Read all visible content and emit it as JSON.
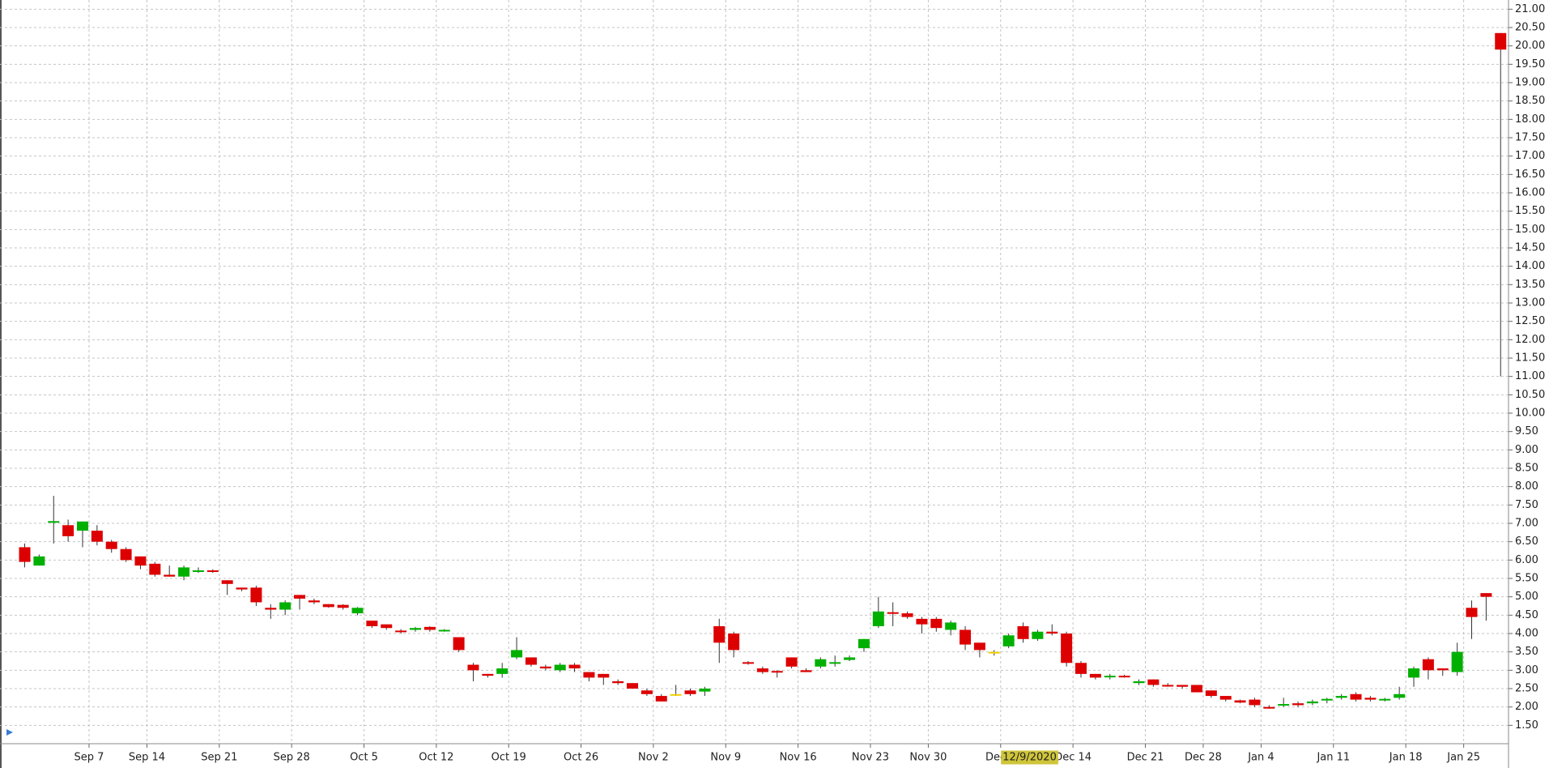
{
  "chart_data": {
    "type": "candlestick",
    "categories": [
      null,
      null,
      null,
      null,
      "Sep 7",
      null,
      null,
      null,
      "Sep 14",
      null,
      null,
      null,
      null,
      "Sep 21",
      null,
      null,
      null,
      null,
      "Sep 28",
      null,
      null,
      null,
      null,
      "Oct 5",
      null,
      null,
      null,
      null,
      "Oct 12",
      null,
      null,
      null,
      null,
      "Oct 19",
      null,
      null,
      null,
      null,
      "Oct 26",
      null,
      null,
      null,
      null,
      "Nov 2",
      null,
      null,
      null,
      null,
      "Nov 9",
      null,
      null,
      null,
      null,
      "Nov 16",
      null,
      null,
      null,
      null,
      "Nov 23",
      null,
      null,
      null,
      "Nov 30",
      null,
      null,
      null,
      null,
      "Dec 7",
      null,
      null,
      null,
      null,
      "Dec 14",
      null,
      null,
      null,
      null,
      "Dec 21",
      null,
      null,
      null,
      "Dec 28",
      null,
      null,
      null,
      "Jan 4",
      null,
      null,
      null,
      null,
      "Jan 11",
      null,
      null,
      null,
      null,
      "Jan 18",
      null,
      null,
      null,
      "Jan 25",
      null,
      null,
      null
    ],
    "open": [
      6.35,
      5.85,
      7.03,
      6.95,
      6.8,
      6.8,
      6.5,
      6.3,
      6.1,
      5.9,
      5.6,
      5.55,
      5.7,
      5.72,
      5.45,
      5.25,
      5.25,
      4.7,
      4.65,
      5.05,
      4.9,
      4.8,
      4.78,
      4.55,
      4.35,
      4.25,
      4.08,
      4.1,
      4.18,
      4.08,
      3.9,
      3.15,
      2.9,
      2.9,
      3.35,
      3.35,
      3.1,
      3.0,
      3.15,
      2.95,
      2.9,
      2.7,
      2.65,
      2.45,
      2.3,
      2.35,
      2.45,
      2.42,
      4.2,
      4.0,
      3.22,
      3.05,
      2.98,
      3.35,
      3.0,
      3.1,
      3.2,
      3.28,
      3.6,
      4.2,
      4.58,
      4.55,
      4.4,
      4.4,
      4.1,
      4.1,
      3.75,
      3.5,
      3.65,
      4.2,
      3.85,
      4.05,
      4.0,
      3.2,
      2.9,
      2.82,
      2.85,
      2.65,
      2.75,
      2.6,
      2.6,
      2.6,
      2.45,
      2.3,
      2.18,
      2.2,
      2.0,
      2.05,
      2.1,
      2.1,
      2.18,
      2.25,
      2.35,
      2.25,
      2.2,
      2.25,
      2.8,
      3.3,
      3.05,
      2.95,
      4.7,
      5.1,
      20.35
    ],
    "high": [
      6.45,
      6.15,
      7.75,
      7.1,
      7.05,
      6.95,
      6.55,
      6.35,
      6.1,
      5.95,
      5.85,
      5.85,
      5.8,
      5.75,
      5.45,
      5.25,
      5.3,
      4.8,
      4.9,
      5.05,
      4.95,
      4.8,
      4.8,
      4.72,
      4.35,
      4.25,
      4.12,
      4.18,
      4.2,
      4.12,
      3.9,
      3.2,
      2.9,
      3.2,
      3.9,
      3.35,
      3.15,
      3.2,
      3.2,
      2.95,
      2.9,
      2.75,
      2.65,
      2.5,
      2.35,
      2.6,
      2.5,
      2.55,
      4.4,
      4.05,
      3.25,
      3.1,
      3.0,
      3.35,
      3.05,
      3.35,
      3.4,
      3.4,
      3.85,
      5.0,
      4.85,
      4.6,
      4.45,
      4.45,
      4.35,
      4.2,
      3.75,
      3.55,
      4.0,
      4.3,
      4.1,
      4.25,
      4.05,
      3.25,
      2.9,
      2.9,
      2.88,
      2.75,
      2.75,
      2.65,
      2.6,
      2.6,
      2.45,
      2.3,
      2.2,
      2.25,
      2.05,
      2.25,
      2.15,
      2.2,
      2.25,
      2.35,
      2.4,
      2.3,
      2.25,
      2.55,
      3.1,
      3.35,
      3.05,
      3.75,
      4.9,
      5.1,
      20.35
    ],
    "low": [
      5.8,
      5.85,
      6.45,
      6.5,
      6.35,
      6.4,
      6.2,
      5.95,
      5.75,
      5.55,
      5.55,
      5.45,
      5.65,
      5.65,
      5.05,
      5.15,
      4.75,
      4.4,
      4.5,
      4.65,
      4.8,
      4.7,
      4.65,
      4.5,
      4.15,
      4.1,
      4.0,
      4.05,
      4.05,
      4.05,
      3.5,
      2.7,
      2.8,
      2.8,
      3.3,
      3.1,
      3.0,
      2.95,
      2.95,
      2.7,
      2.6,
      2.6,
      2.5,
      2.3,
      2.15,
      2.3,
      2.3,
      2.3,
      3.2,
      3.35,
      3.15,
      2.9,
      2.8,
      3.05,
      2.95,
      3.05,
      3.1,
      3.25,
      3.5,
      4.15,
      4.2,
      4.4,
      4.0,
      4.05,
      3.95,
      3.55,
      3.35,
      3.4,
      3.6,
      3.75,
      3.8,
      3.95,
      3.1,
      2.8,
      2.75,
      2.75,
      2.8,
      2.6,
      2.55,
      2.55,
      2.5,
      2.4,
      2.25,
      2.15,
      2.1,
      2.0,
      1.95,
      2.0,
      2.0,
      2.05,
      2.1,
      2.2,
      2.15,
      2.15,
      2.15,
      2.2,
      2.55,
      2.75,
      2.85,
      2.85,
      3.85,
      4.35,
      11.0
    ],
    "close": [
      5.95,
      6.1,
      7.06,
      6.65,
      7.05,
      6.5,
      6.3,
      6.0,
      5.85,
      5.6,
      5.55,
      5.8,
      5.72,
      5.7,
      5.35,
      5.2,
      4.85,
      4.65,
      4.85,
      4.95,
      4.85,
      4.72,
      4.7,
      4.7,
      4.2,
      4.15,
      4.05,
      4.15,
      4.1,
      4.1,
      3.55,
      3.0,
      2.85,
      3.05,
      3.55,
      3.15,
      3.05,
      3.15,
      3.05,
      2.8,
      2.8,
      2.65,
      2.5,
      2.35,
      2.15,
      2.35,
      2.35,
      2.5,
      3.75,
      3.55,
      3.18,
      2.95,
      2.95,
      3.1,
      2.95,
      3.3,
      3.22,
      3.35,
      3.85,
      4.6,
      4.55,
      4.45,
      4.25,
      4.15,
      4.3,
      3.7,
      3.55,
      3.5,
      3.95,
      3.85,
      4.05,
      4.0,
      3.2,
      2.9,
      2.8,
      2.85,
      2.82,
      2.7,
      2.6,
      2.58,
      2.55,
      2.4,
      2.3,
      2.2,
      2.12,
      2.05,
      1.98,
      2.08,
      2.05,
      2.15,
      2.22,
      2.3,
      2.2,
      2.2,
      2.22,
      2.35,
      3.05,
      3.0,
      3.0,
      3.5,
      4.45,
      5.0,
      19.9
    ],
    "up_color": "#00b000",
    "down_color": "#dd0000",
    "flat_color": "#f0d000",
    "ylim": [
      1.0,
      21.25
    ],
    "yticks": [
      {
        "value": 1.5,
        "label": "1.50"
      },
      {
        "value": 2,
        "label": "2.00"
      },
      {
        "value": 2.5,
        "label": "2.50"
      },
      {
        "value": 3,
        "label": "3.00"
      },
      {
        "value": 3.5,
        "label": "3.50"
      },
      {
        "value": 4,
        "label": "4.00"
      },
      {
        "value": 4.5,
        "label": "4.50"
      },
      {
        "value": 5,
        "label": "5.00"
      },
      {
        "value": 5.5,
        "label": "5.50"
      },
      {
        "value": 6,
        "label": "6.00"
      },
      {
        "value": 6.5,
        "label": "6.50"
      },
      {
        "value": 7,
        "label": "7.00"
      },
      {
        "value": 7.5,
        "label": "7.50"
      },
      {
        "value": 8,
        "label": "8.00"
      },
      {
        "value": 8.5,
        "label": "8.50"
      },
      {
        "value": 9,
        "label": "9.00"
      },
      {
        "value": 9.5,
        "label": "9.50"
      },
      {
        "value": 10,
        "label": "10.00"
      },
      {
        "value": 10.5,
        "label": "10.50"
      },
      {
        "value": 11,
        "label": "11.00"
      },
      {
        "value": 11.5,
        "label": "11.50"
      },
      {
        "value": 12,
        "label": "12.00"
      },
      {
        "value": 12.5,
        "label": "12.50"
      },
      {
        "value": 13,
        "label": "13.00"
      },
      {
        "value": 13.5,
        "label": "13.50"
      },
      {
        "value": 14,
        "label": "14.00"
      },
      {
        "value": 14.5,
        "label": "14.50"
      },
      {
        "value": 15,
        "label": "15.00"
      },
      {
        "value": 15.5,
        "label": "15.50"
      },
      {
        "value": 16,
        "label": "16.00"
      },
      {
        "value": 16.5,
        "label": "16.50"
      },
      {
        "value": 17,
        "label": "17.00"
      },
      {
        "value": 17.5,
        "label": "17.50"
      },
      {
        "value": 18,
        "label": "18.00"
      },
      {
        "value": 18.5,
        "label": "18.50"
      },
      {
        "value": 19,
        "label": "19.00"
      },
      {
        "value": 19.5,
        "label": "19.50"
      },
      {
        "value": 20,
        "label": "20.00"
      },
      {
        "value": 20.5,
        "label": "20.50"
      },
      {
        "value": 21,
        "label": "21.00"
      }
    ],
    "grid": true,
    "crosshair": {
      "label": "12/9/2020",
      "category_index": 69
    }
  }
}
